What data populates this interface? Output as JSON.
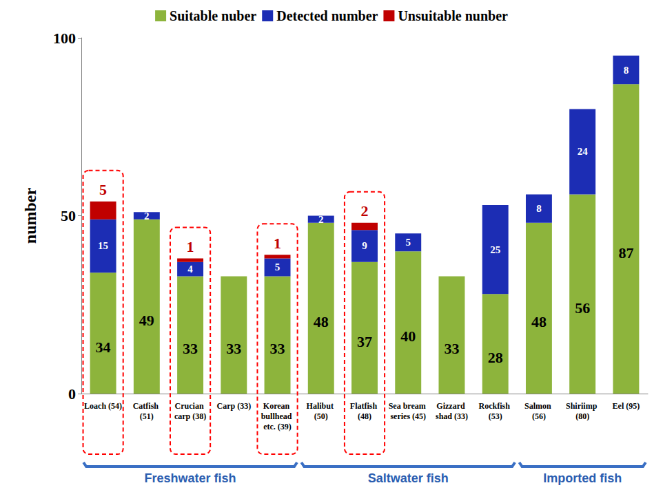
{
  "chart_data": {
    "type": "bar",
    "stacked": true,
    "data_labels": true,
    "grid": false,
    "legend": "top",
    "y_label": "number",
    "categories": [
      "Loach (54)",
      "Catfish (51)",
      "Crucian carp (38)",
      "Carp (33)",
      "Korean bullhead etc. (39)",
      "Halibut (50)",
      "Flatfish (48)",
      "Sea bream series (45)",
      "Gizzard shad (33)",
      "Rockfish (53)",
      "Salmon (56)",
      "Shiriimp (80)",
      "Eel (95)"
    ],
    "series": [
      {
        "name": "Suitable nuber",
        "color": "#8db43c",
        "values": [
          34,
          49,
          33,
          33,
          33,
          48,
          37,
          40,
          33,
          28,
          48,
          56,
          87
        ]
      },
      {
        "name": "Detected number",
        "color": "#1c2db4",
        "values": [
          15,
          2,
          4,
          0,
          5,
          2,
          9,
          5,
          0,
          25,
          8,
          24,
          8
        ]
      },
      {
        "name": "Unsuitable nunber",
        "color": "#c00000",
        "values": [
          5,
          0,
          1,
          0,
          1,
          0,
          2,
          0,
          0,
          0,
          0,
          0,
          0
        ]
      }
    ],
    "ylim": [
      0,
      100
    ],
    "yticks": [
      0,
      50,
      100
    ],
    "groups": [
      {
        "label": "Freshwater fish",
        "first": "Loach (54)",
        "last": "Korean bullhead etc. (39)"
      },
      {
        "label": "Saltwater fish",
        "first": "Halibut (50)",
        "last": "Rockfish (53)"
      },
      {
        "label": "Imported fish",
        "first": "Salmon (56)",
        "last": "Eel (95)"
      }
    ]
  }
}
